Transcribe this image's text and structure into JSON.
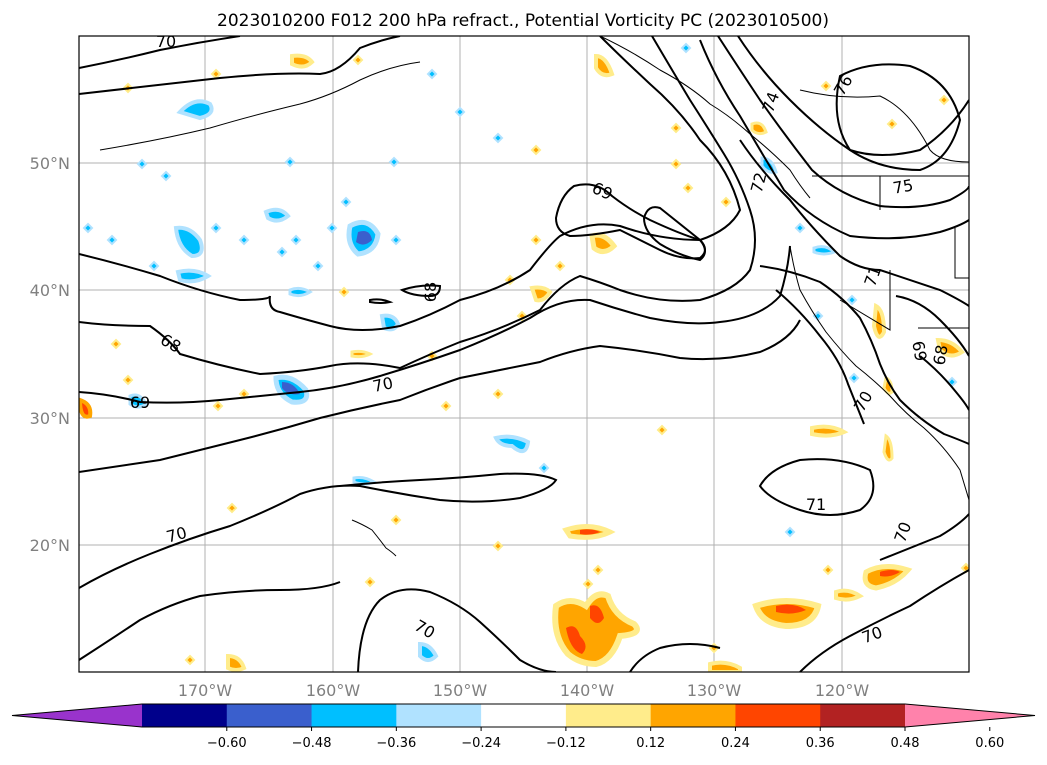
{
  "title": "2023010200 F012 200 hPa refract., Potential Vorticity PC (2023010500)",
  "lat_labels": [
    "50°N",
    "40°N",
    "30°N",
    "20°N"
  ],
  "lon_labels": [
    "170°W",
    "160°W",
    "150°W",
    "140°W",
    "130°W",
    "120°W"
  ],
  "colorbar": {
    "ticks": [
      "−0.60",
      "−0.48",
      "−0.36",
      "−0.24",
      "−0.12",
      "0.12",
      "0.24",
      "0.36",
      "0.48",
      "0.60"
    ],
    "colors": [
      "#9933cc",
      "#00008b",
      "#3a5fcd",
      "#00bfff",
      "#b0e2ff",
      "#ffffff",
      "#ffec8b",
      "#ffa500",
      "#ff4500",
      "#b22222",
      "#ff82ab"
    ]
  },
  "contour_labels": [
    "70",
    "69",
    "68",
    "70",
    "69",
    "70",
    "70",
    "71",
    "70",
    "68",
    "74",
    "76",
    "75",
    "72",
    "71",
    "69",
    "68",
    "70",
    "70"
  ],
  "colors": {
    "axis": "#000000",
    "tick_text": "#808080",
    "grid": "#b0b0b0"
  }
}
